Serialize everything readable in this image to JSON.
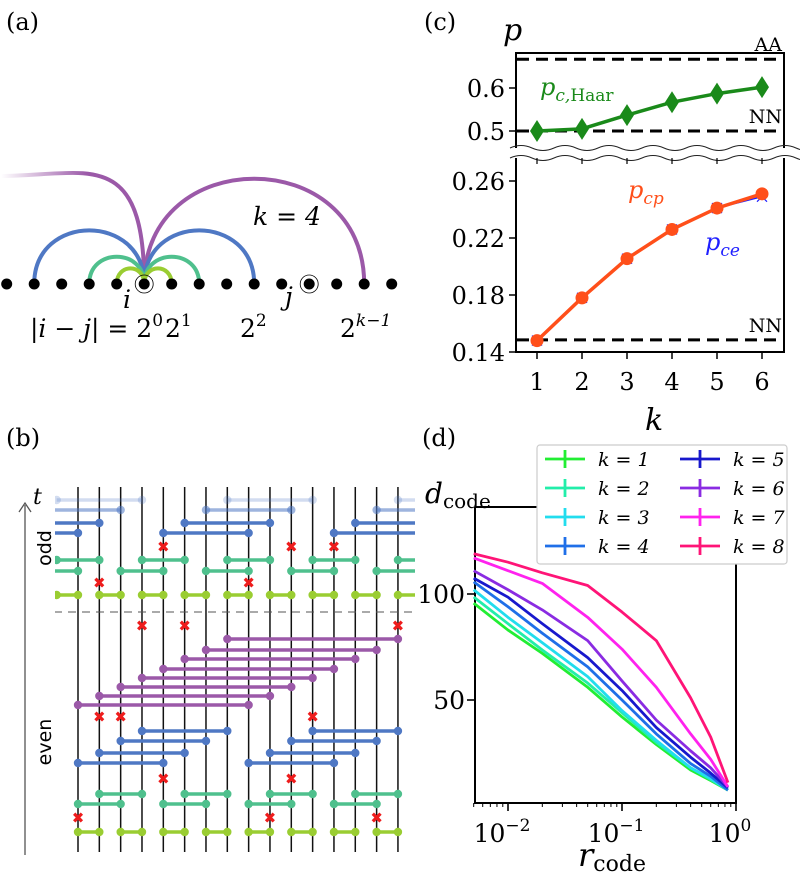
{
  "panel_labels": {
    "a": "(a)",
    "b": "(b)",
    "c": "(c)",
    "d": "(d)"
  },
  "panel_a": {
    "k_label": "k = 4",
    "i_label": "i",
    "j_label": "j",
    "distance_label": "|i − j| = ",
    "powers": [
      {
        "base": "2",
        "exp": "0"
      },
      {
        "base": "2",
        "exp": "1"
      },
      {
        "base": "2",
        "exp": "2"
      },
      {
        "base": "2",
        "exp": "k−1"
      }
    ],
    "num_sites": 15,
    "site_i": 5,
    "site_j": 11,
    "arc_colors": [
      "#9acd32",
      "#4fc08d",
      "#4f78c4",
      "#9b59a8"
    ]
  },
  "panel_b": {
    "time_label": "t",
    "odd_label": "odd",
    "even_label": "even",
    "num_wires": 16,
    "colors": {
      "k1": "#9acd32",
      "k2": "#4fc08d",
      "k3": "#4f78c4",
      "k4": "#9b59a8",
      "measurement": "#ee1c1c"
    },
    "even_layers": [
      {
        "type": "gates",
        "color": "k1",
        "pairs": [
          [
            0,
            1
          ],
          [
            2,
            3
          ],
          [
            4,
            5
          ],
          [
            6,
            7
          ],
          [
            8,
            9
          ],
          [
            10,
            11
          ],
          [
            12,
            13
          ],
          [
            14,
            15
          ]
        ]
      },
      {
        "type": "measure",
        "wires": [
          0,
          9,
          14
        ]
      },
      {
        "type": "gates",
        "color": "k2",
        "pairs": [
          [
            0,
            2
          ],
          [
            4,
            6
          ],
          [
            8,
            10
          ],
          [
            12,
            14
          ]
        ]
      },
      {
        "type": "gates",
        "color": "k2",
        "pairs": [
          [
            1,
            3
          ],
          [
            5,
            7
          ],
          [
            9,
            11
          ],
          [
            13,
            15
          ]
        ]
      },
      {
        "type": "measure",
        "wires": [
          4,
          10
        ]
      },
      {
        "type": "gates",
        "color": "k3",
        "pairs": [
          [
            0,
            4
          ],
          [
            8,
            12
          ]
        ]
      },
      {
        "type": "gates",
        "color": "k3",
        "pairs": [
          [
            1,
            5
          ],
          [
            9,
            13
          ]
        ]
      },
      {
        "type": "gates",
        "color": "k3",
        "pairs": [
          [
            2,
            6
          ],
          [
            10,
            14
          ]
        ]
      },
      {
        "type": "gates",
        "color": "k3",
        "pairs": [
          [
            3,
            7
          ],
          [
            11,
            15
          ]
        ]
      },
      {
        "type": "measure",
        "wires": [
          1,
          2,
          11
        ]
      },
      {
        "type": "gates",
        "color": "k4",
        "pairs": [
          [
            0,
            8
          ]
        ]
      },
      {
        "type": "gates",
        "color": "k4",
        "pairs": [
          [
            1,
            9
          ]
        ]
      },
      {
        "type": "gates",
        "color": "k4",
        "pairs": [
          [
            2,
            10
          ]
        ]
      },
      {
        "type": "gates",
        "color": "k4",
        "pairs": [
          [
            3,
            11
          ]
        ]
      },
      {
        "type": "gates",
        "color": "k4",
        "pairs": [
          [
            4,
            12
          ]
        ]
      },
      {
        "type": "gates",
        "color": "k4",
        "pairs": [
          [
            5,
            13
          ]
        ]
      },
      {
        "type": "gates",
        "color": "k4",
        "pairs": [
          [
            6,
            14
          ]
        ]
      },
      {
        "type": "gates",
        "color": "k4",
        "pairs": [
          [
            7,
            15
          ]
        ]
      },
      {
        "type": "measure",
        "wires": [
          3,
          5,
          15
        ]
      }
    ],
    "odd_layers": [
      {
        "type": "gates",
        "color": "k1",
        "pairs": [
          [
            -1,
            0
          ],
          [
            1,
            2
          ],
          [
            3,
            4
          ],
          [
            5,
            6
          ],
          [
            7,
            8
          ],
          [
            9,
            10
          ],
          [
            11,
            12
          ],
          [
            13,
            14
          ],
          [
            15,
            16
          ]
        ]
      },
      {
        "type": "measure",
        "wires": [
          1,
          8
        ]
      },
      {
        "type": "gates",
        "color": "k2",
        "pairs": [
          [
            -2,
            0
          ],
          [
            2,
            4
          ],
          [
            6,
            8
          ],
          [
            10,
            12
          ],
          [
            14,
            16
          ]
        ]
      },
      {
        "type": "gates",
        "color": "k2",
        "pairs": [
          [
            -1,
            1
          ],
          [
            3,
            5
          ],
          [
            7,
            9
          ],
          [
            11,
            13
          ],
          [
            15,
            17
          ]
        ]
      },
      {
        "type": "measure",
        "wires": [
          4,
          10,
          12
        ]
      },
      {
        "type": "gates",
        "color": "k3",
        "pairs": [
          [
            -4,
            0
          ],
          [
            4,
            8
          ],
          [
            12,
            16
          ]
        ]
      },
      {
        "type": "gates",
        "color": "k3",
        "pairs": [
          [
            -3,
            1
          ],
          [
            5,
            9
          ],
          [
            13,
            17
          ]
        ]
      },
      {
        "type": "gates",
        "color": "k3",
        "pairs": [
          [
            -2,
            2
          ],
          [
            6,
            10
          ],
          [
            14,
            18
          ]
        ],
        "fade": 0.55
      },
      {
        "type": "gates",
        "color": "k3",
        "pairs": [
          [
            -1,
            3
          ],
          [
            7,
            11
          ],
          [
            15,
            19
          ]
        ],
        "fade": 0.25
      }
    ]
  },
  "chart_data": [
    {
      "panel": "(c)",
      "type": "line",
      "ylabel": "p",
      "xlabel": "k",
      "x": [
        1,
        2,
        3,
        4,
        5,
        6
      ],
      "xticks": [
        "1",
        "2",
        "3",
        "4",
        "5",
        "6"
      ],
      "broken_axis": true,
      "upper": {
        "ylim": [
          0.46,
          0.68
        ],
        "yticks": [
          "0.6",
          "0.5"
        ],
        "yticks_values": [
          0.6,
          0.5
        ],
        "series": [
          {
            "name": "p_c,Haar",
            "label_main": "p",
            "label_sub": "c,",
            "label_sub2": "Haar",
            "color": "#1a8a1a",
            "marker": "diamond",
            "values": [
              0.5,
              0.505,
              0.537,
              0.567,
              0.587,
              0.602
            ]
          }
        ],
        "reference_lines": [
          {
            "label": "AA",
            "value": 0.667
          },
          {
            "label": "NN",
            "value": 0.5
          }
        ]
      },
      "lower": {
        "ylim": [
          0.14,
          0.281
        ],
        "yticks": [
          "0.26",
          "0.22",
          "0.18",
          "0.14"
        ],
        "yticks_values": [
          0.26,
          0.22,
          0.18,
          0.14
        ],
        "series": [
          {
            "name": "p_ce",
            "label_main": "p",
            "label_sub": "ce",
            "color": "#1f1fff",
            "marker": "x",
            "values": [
              0.148,
              0.178,
              0.2055,
              0.226,
              0.241,
              0.249
            ]
          },
          {
            "name": "p_cp",
            "label_main": "p",
            "label_sub": "cp",
            "color": "#ff4f1a",
            "marker": "circle",
            "values": [
              0.148,
              0.178,
              0.2055,
              0.226,
              0.241,
              0.251
            ]
          }
        ],
        "reference_lines": [
          {
            "label": "NN",
            "value": 0.1485
          }
        ]
      }
    },
    {
      "panel": "(d)",
      "type": "line",
      "xscale": "log",
      "xlabel_main": "r",
      "xlabel_sub": "code",
      "ylabel_main": "d",
      "ylabel_sub": "code",
      "xlim": [
        0.005,
        1
      ],
      "ylim": [
        1.4,
        141
      ],
      "xticks": [
        {
          "base": "10",
          "exp": "−2",
          "value": 0.01
        },
        {
          "base": "10",
          "exp": "−1",
          "value": 0.1
        },
        {
          "base": "10",
          "exp": "0",
          "value": 1
        }
      ],
      "yticks": [
        "100",
        "50"
      ],
      "yticks_values": [
        100,
        50
      ],
      "legend_position": "top-right",
      "x": [
        0.005,
        0.01,
        0.02,
        0.05,
        0.1,
        0.2,
        0.4,
        0.6,
        0.85
      ],
      "series": [
        {
          "name": "k = 1",
          "color": "#22ee33",
          "values": [
            95.7,
            83,
            72,
            56,
            42,
            29,
            17,
            12,
            7.5
          ]
        },
        {
          "name": "k = 2",
          "color": "#22eeaa",
          "values": [
            98.6,
            86,
            73.6,
            58,
            44,
            30,
            18,
            12.5,
            7.5
          ]
        },
        {
          "name": "k = 3",
          "color": "#22ddee",
          "values": [
            102,
            89,
            77,
            61,
            45,
            31,
            18,
            13,
            7.5
          ]
        },
        {
          "name": "k = 4",
          "color": "#1f6fe8",
          "values": [
            105.7,
            94,
            81.5,
            65.6,
            50,
            34,
            20,
            14,
            7.5
          ]
        },
        {
          "name": "k = 5",
          "color": "#1818cc",
          "values": [
            107.5,
            98.5,
            86,
            70,
            54.5,
            37,
            23,
            15.5,
            8.5
          ]
        },
        {
          "name": "k = 6",
          "color": "#8a2be2",
          "values": [
            111,
            102,
            92.5,
            78,
            59,
            40.5,
            26,
            18,
            9
          ]
        },
        {
          "name": "k = 7",
          "color": "#ff22ee",
          "values": [
            117,
            111,
            105,
            89,
            74,
            56,
            34,
            22,
            9
          ]
        },
        {
          "name": "k = 8",
          "color": "#ff1477",
          "values": [
            119,
            115,
            110,
            104,
            91.5,
            78,
            51,
            32.5,
            11
          ]
        }
      ]
    }
  ]
}
